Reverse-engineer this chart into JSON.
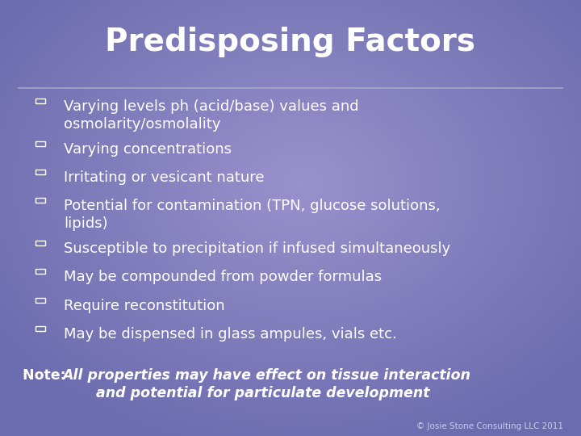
{
  "title": "Predisposing Factors",
  "title_fontsize": 28,
  "title_color": "#ffffff",
  "background_base": [
    0.42,
    0.42,
    0.68
  ],
  "background_highlight": [
    0.2,
    0.18,
    0.22
  ],
  "divider_color": "#aaaacc",
  "bullet_items": [
    {
      "text": "Varying levels ph (acid/base) values and\nosmolarity/osmolality",
      "two_lines": true
    },
    {
      "text": "Varying concentrations",
      "two_lines": false
    },
    {
      "text": "Irritating or vesicant nature",
      "two_lines": false
    },
    {
      "text": "Potential for contamination (TPN, glucose solutions,\nlipids)",
      "two_lines": true
    },
    {
      "text": "Susceptible to precipitation if infused simultaneously",
      "two_lines": false
    },
    {
      "text": "May be compounded from powder formulas",
      "two_lines": false
    },
    {
      "text": "Require reconstitution",
      "two_lines": false
    },
    {
      "text": "May be dispensed in glass ampules, vials etc.",
      "two_lines": false
    }
  ],
  "bullet_color": "#ffffff",
  "bullet_fontsize": 13.0,
  "note_prefix": "Note: ",
  "note_italic": "All properties may have effect on tissue interaction\n       and potential for particulate development",
  "note_fontsize": 12.5,
  "note_color": "#ffffff",
  "copyright_text": "© Josie Stone Consulting LLC 2011",
  "copyright_fontsize": 7.5,
  "copyright_color": "#ccccee"
}
